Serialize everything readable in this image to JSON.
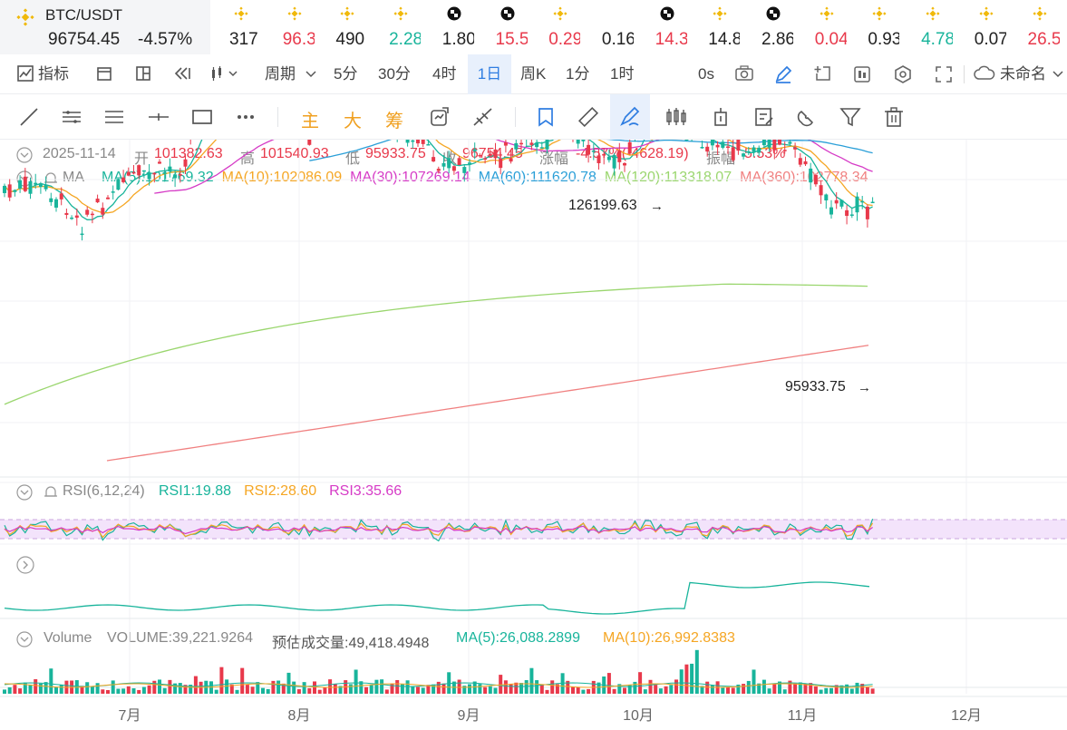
{
  "ticker": {
    "pair": "BTC/USDT",
    "price": "96754.45",
    "change": "-4.57%",
    "items": [
      {
        "icon": "bnb-icon",
        "value": "317",
        "color": "#222222"
      },
      {
        "icon": "bnb-icon",
        "value": "96.3",
        "color": "#e8394b"
      },
      {
        "icon": "bnb-icon",
        "value": "490",
        "color": "#222222"
      },
      {
        "icon": "bnb-icon",
        "value": "2.28",
        "color": "#18b49b"
      },
      {
        "icon": "checker-icon",
        "value": "1.80",
        "color": "#222222"
      },
      {
        "icon": "checker-icon",
        "value": "15.5",
        "color": "#e8394b"
      },
      {
        "icon": "bnb-icon",
        "value": "0.29",
        "color": "#e8394b"
      },
      {
        "icon": "none",
        "value": "0.16",
        "color": "#222222"
      },
      {
        "icon": "checker-icon",
        "value": "14.3",
        "color": "#e8394b"
      },
      {
        "icon": "bnb-icon",
        "value": "14.8",
        "color": "#222222"
      },
      {
        "icon": "checker-icon",
        "value": "2.86",
        "color": "#222222"
      },
      {
        "icon": "bnb-icon",
        "value": "0.04",
        "color": "#e8394b"
      },
      {
        "icon": "bnb-icon",
        "value": "0.93",
        "color": "#222222"
      },
      {
        "icon": "bnb-icon",
        "value": "4.78",
        "color": "#18b49b"
      },
      {
        "icon": "bnb-icon",
        "value": "0.07",
        "color": "#222222"
      },
      {
        "icon": "bnb-icon",
        "value": "26.5",
        "color": "#e8394b"
      }
    ]
  },
  "toolbar": {
    "indicator": "指标",
    "period": "周期",
    "intervals": [
      "5分",
      "30分",
      "4时",
      "1日",
      "周K",
      "1分",
      "1时"
    ],
    "active_interval": "1日",
    "countdown": "0s",
    "layout_name": "未命名"
  },
  "drawing_tools": {
    "text_main": "主",
    "text_big": "大",
    "text_chip": "筹"
  },
  "info": {
    "date": "2025-11-14",
    "open_label": "开",
    "open": "101382.63",
    "high_label": "高",
    "high": "101540.93",
    "low_label": "低",
    "low": "95933.75",
    "close_label": "收",
    "close": "96754.45",
    "chg_label": "涨幅",
    "chg": "-4.57%(-4628.19)",
    "amp_label": "振幅",
    "amp": "5.53%"
  },
  "ma": {
    "name": "MA",
    "items": [
      {
        "text": "MA(5):101769.32",
        "color": "#18b49b"
      },
      {
        "text": "MA(10):102086.09",
        "color": "#f5a623"
      },
      {
        "text": "MA(30):107269.14",
        "color": "#d63bc6"
      },
      {
        "text": "MA(60):111620.78",
        "color": "#2a9fd8"
      },
      {
        "text": "MA(120):113318.07",
        "color": "#9ad66e"
      },
      {
        "text": "MA(360):102778.34",
        "color": "#f08080"
      }
    ]
  },
  "annotations": {
    "high_mark": "126199.63",
    "low_mark": "95933.75"
  },
  "rsi": {
    "name": "RSI(6,12,24)",
    "items": [
      {
        "text": "RSI1:19.88",
        "color": "#18b49b"
      },
      {
        "text": "RSI2:28.60",
        "color": "#f5a623"
      },
      {
        "text": "RSI3:35.66",
        "color": "#d63bc6"
      }
    ]
  },
  "volume": {
    "name": "Volume",
    "vol": "VOLUME:39,221.9264",
    "est": "预估成交量:49,418.4948",
    "ma5": "MA(5):26,088.2899",
    "ma10": "MA(10):26,992.8383"
  },
  "xaxis": [
    "7月",
    "8月",
    "9月",
    "10月",
    "11月",
    "12月"
  ],
  "colors": {
    "up": "#18b49b",
    "down": "#e8394b",
    "accent": "#2f7de1",
    "brand": "#f0b90b"
  }
}
